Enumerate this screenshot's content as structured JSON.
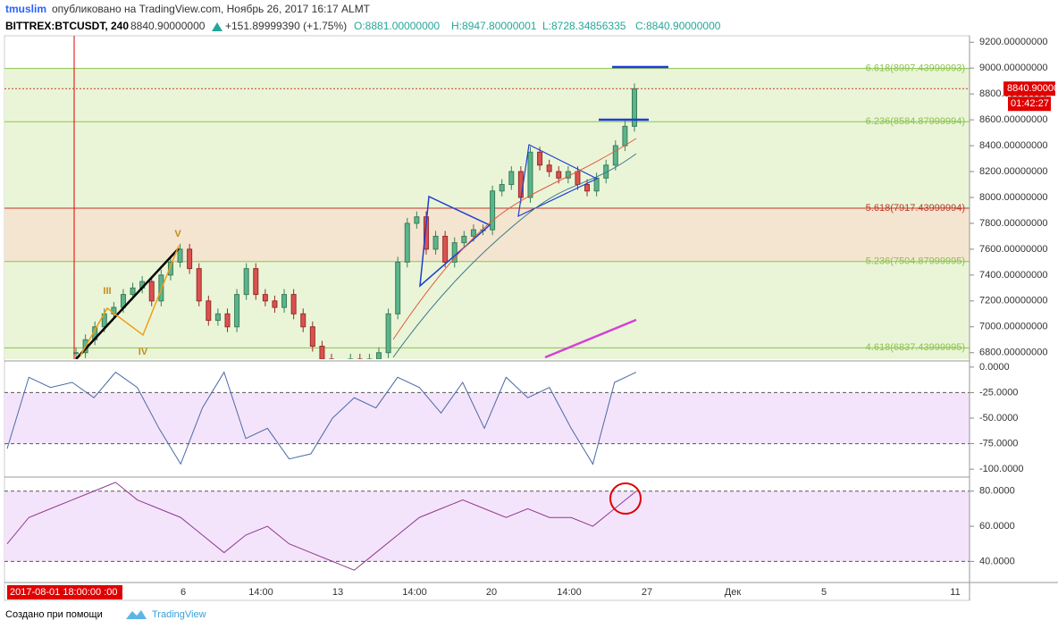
{
  "header": {
    "author": "tmuslim",
    "published": "опубликовано на TradingView.com, Ноябрь 26, 2017 16:17 ALMT",
    "symbol": "BITTREX:BTCUSDT, 240",
    "last": "8840.90000000",
    "change": "+151.89999390 (+1.75%)",
    "open": "O:8881.00000000",
    "high": "H:8947.80000001",
    "low": "L:8728.34856335",
    "close": "C:8840.90000000"
  },
  "chart_data": {
    "type": "candlestick",
    "closes": [
      6800,
      6900,
      7000,
      7100,
      7150,
      7250,
      7300,
      7350,
      7200,
      7400,
      7500,
      7600,
      7450,
      7200,
      7050,
      7100,
      7000,
      7250,
      7450,
      7250,
      7200,
      7150,
      7250,
      7100,
      7000,
      6850,
      6750,
      6700,
      6700,
      6750,
      6720,
      6750,
      6800,
      7100,
      7500,
      7800,
      7850,
      7600,
      7700,
      7500,
      7650,
      7700,
      7750,
      7750,
      8050,
      8100,
      8200,
      8000,
      8350,
      8250,
      8200,
      8150,
      8200,
      8100,
      8050,
      8150,
      8250,
      8400,
      8550,
      8840
    ],
    "ylim": [
      6750,
      9250
    ],
    "yticks": [
      {
        "value": 9200,
        "label": "9200.00000000"
      },
      {
        "value": 9000,
        "label": "9000.00000000"
      },
      {
        "value": 8800,
        "label": "8800.00000000"
      },
      {
        "value": 8600,
        "label": "8600.00000000"
      },
      {
        "value": 8400,
        "label": "8400.00000000"
      },
      {
        "value": 8200,
        "label": "8200.00000000"
      },
      {
        "value": 8000,
        "label": "8000.00000000"
      },
      {
        "value": 7800,
        "label": "7800.00000000"
      },
      {
        "value": 7600,
        "label": "7600.00000000"
      },
      {
        "value": 7400,
        "label": "7400.00000000"
      },
      {
        "value": 7200,
        "label": "7200.00000000"
      },
      {
        "value": 7000,
        "label": "7000.00000000"
      },
      {
        "value": 6800,
        "label": "6800.00000000"
      }
    ],
    "fib": [
      {
        "value": 8997.43999993,
        "label": "6.618(8997.43999993)"
      },
      {
        "value": 8584.87999994,
        "label": "6.236(8584.87999994)"
      },
      {
        "value": 7917.43999994,
        "label": "5.618(7917.43999994)"
      },
      {
        "value": 7504.87999995,
        "label": "5.236(7504.87999995)"
      },
      {
        "value": 6837.43999995,
        "label": "4.618(6837.43999995)"
      }
    ],
    "price_label": {
      "value": 8840.9,
      "label": "8840.90000000"
    },
    "countdown": "01:42:27",
    "waves": [
      "III",
      "IV",
      "V"
    ]
  },
  "williams_r": {
    "values": [
      -80,
      -10,
      -20,
      -15,
      -30,
      -5,
      -20,
      -60,
      -95,
      -40,
      -5,
      -70,
      -60,
      -90,
      -85,
      -50,
      -30,
      -40,
      -10,
      -20,
      -45,
      -15,
      -60,
      -10,
      -30,
      -20,
      -60,
      -95,
      -15,
      -5
    ],
    "ylim": [
      -106,
      6
    ],
    "yticks": [
      {
        "value": 0,
        "label": "0.0000"
      },
      {
        "value": -25,
        "label": "-25.0000"
      },
      {
        "value": -50,
        "label": "-50.0000"
      },
      {
        "value": -75,
        "label": "-75.0000"
      },
      {
        "value": -100,
        "label": "-100.0000"
      }
    ]
  },
  "rsi": {
    "values": [
      50,
      65,
      70,
      75,
      80,
      85,
      75,
      70,
      65,
      55,
      45,
      55,
      60,
      50,
      45,
      40,
      35,
      45,
      55,
      65,
      70,
      75,
      70,
      65,
      70,
      65,
      65,
      60,
      70,
      80
    ],
    "ylim": [
      28,
      88
    ],
    "yticks": [
      {
        "value": 80,
        "label": "80.0000"
      },
      {
        "value": 60,
        "label": "60.0000"
      },
      {
        "value": 40,
        "label": "40.0000"
      }
    ]
  },
  "time_axis": {
    "cursor": "2017-08-01 18:00:00 :00",
    "labels": [
      "6",
      "14:00",
      "13",
      "14:00",
      "20",
      "14:00",
      "27",
      "Дек",
      "5",
      "11"
    ]
  },
  "footer": {
    "made_with": "Создано при помощи",
    "brand": "TradingView"
  }
}
